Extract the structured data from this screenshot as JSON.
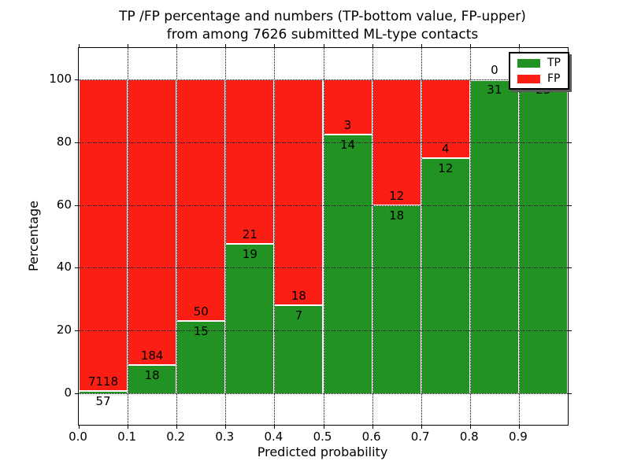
{
  "title": {
    "line1": "TP /FP percentage and numbers (TP-bottom value, FP-upper)",
    "line2": "from among 7626 submitted ML-type contacts"
  },
  "x_axis": {
    "label": "Predicted probability",
    "ticks": [
      "0.0",
      "0.1",
      "0.2",
      "0.3",
      "0.4",
      "0.5",
      "0.6",
      "0.7",
      "0.8",
      "0.9"
    ]
  },
  "y_axis": {
    "label": "Percentage",
    "ticks": [
      "0",
      "20",
      "40",
      "60",
      "80",
      "100"
    ],
    "tick_values": [
      0,
      20,
      40,
      60,
      80,
      100
    ]
  },
  "legend": {
    "items": [
      {
        "label": "TP",
        "color": "#229322"
      },
      {
        "label": "FP",
        "color": "#fb1e14"
      }
    ]
  },
  "chart_data": {
    "type": "bar",
    "stacked": true,
    "normalized_to_percent": true,
    "title": "TP /FP percentage and numbers (TP-bottom value, FP-upper) from among 7626 submitted ML-type contacts",
    "xlabel": "Predicted probability",
    "ylabel": "Percentage",
    "xlim": [
      0.0,
      1.0
    ],
    "ylim": [
      -10,
      110
    ],
    "bin_width": 0.1,
    "grid": true,
    "legend_position": "upper right",
    "categories": [
      "0.0-0.1",
      "0.1-0.2",
      "0.2-0.3",
      "0.3-0.4",
      "0.4-0.5",
      "0.5-0.6",
      "0.6-0.7",
      "0.7-0.8",
      "0.8-0.9",
      "0.9-1.0"
    ],
    "series": [
      {
        "name": "TP",
        "color": "#229322",
        "counts": [
          57,
          18,
          15,
          19,
          7,
          14,
          18,
          12,
          31,
          25
        ]
      },
      {
        "name": "FP",
        "color": "#fb1e14",
        "counts": [
          7118,
          184,
          50,
          21,
          18,
          3,
          12,
          4,
          0,
          0
        ]
      }
    ],
    "tp_percent": [
      0.79,
      8.91,
      23.08,
      47.5,
      28.0,
      82.35,
      60.0,
      75.0,
      100.0,
      100.0
    ],
    "total_contacts": 7626
  }
}
